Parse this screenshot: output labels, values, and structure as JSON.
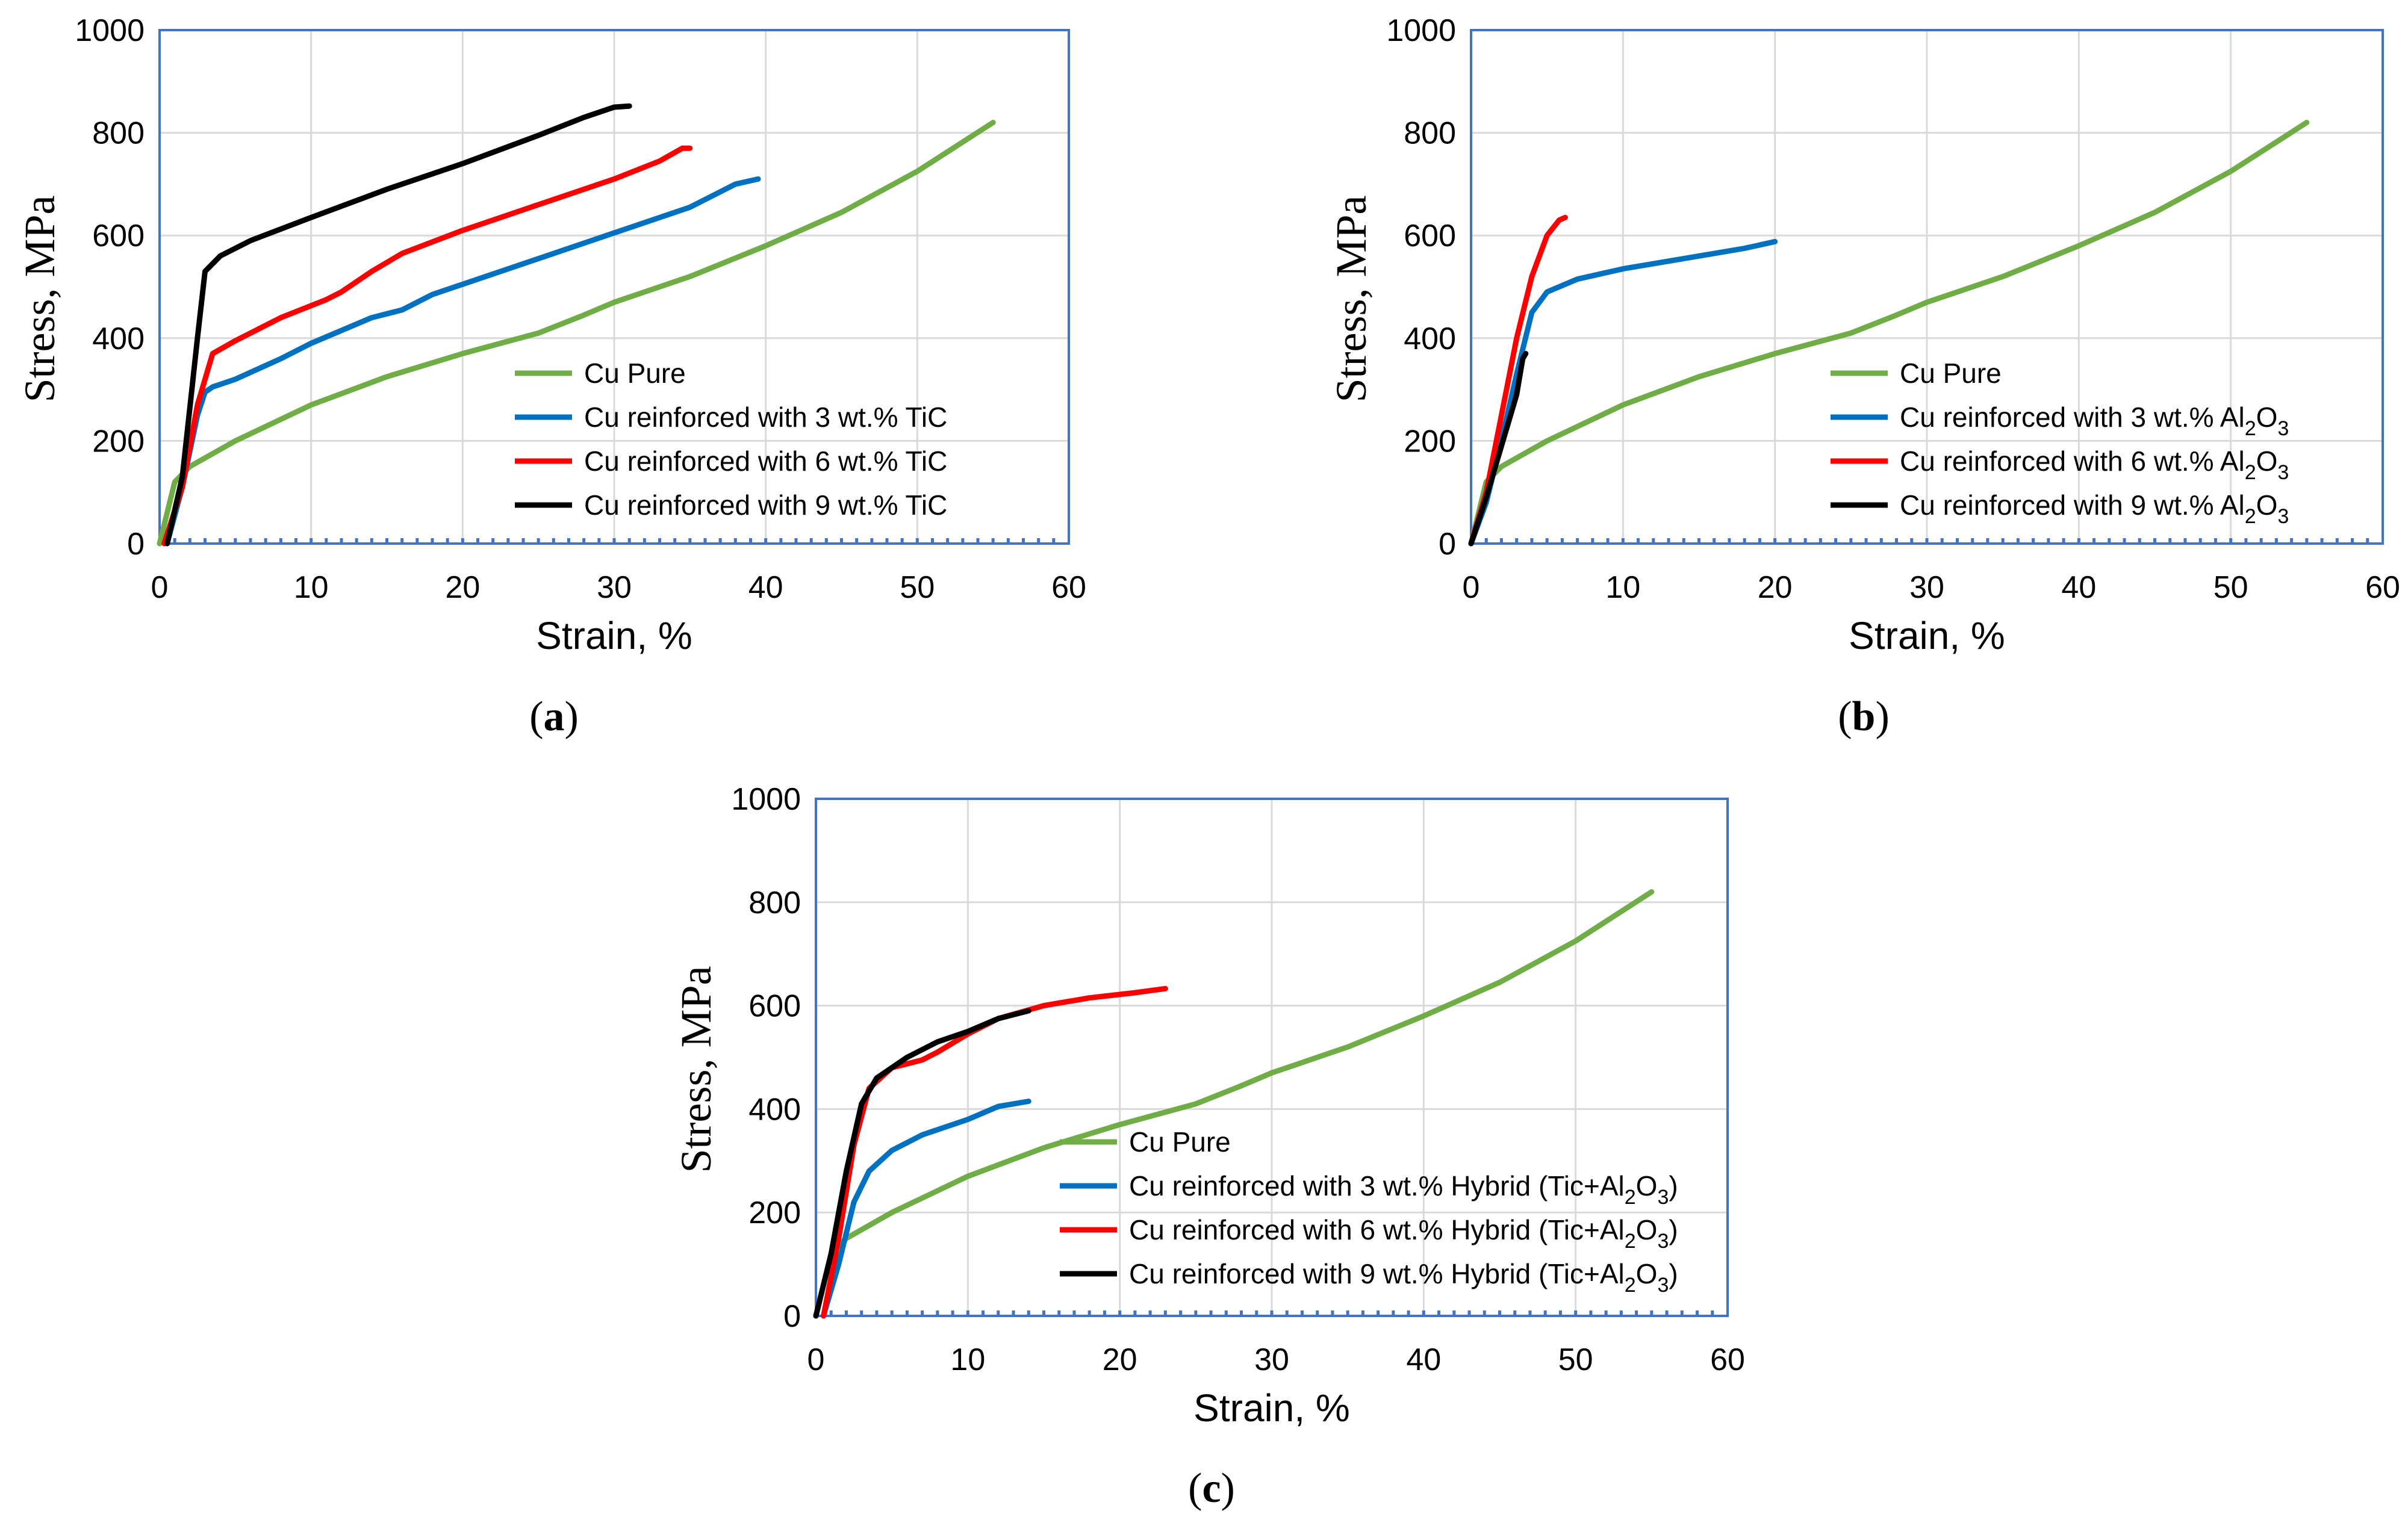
{
  "colors": {
    "pure": "#70ad47",
    "s3": "#0070c0",
    "s6": "#ff0000",
    "s9": "#000000",
    "frame": "#4472c4",
    "grid": "#d9d9d9"
  },
  "chart_data": [
    {
      "type": "line",
      "panel_label": "a",
      "xlabel": "Strain, %",
      "ylabel": "Stress,  MPa",
      "xlim": [
        0,
        60
      ],
      "ylim": [
        0,
        1000
      ],
      "xticks": [
        "0",
        "10",
        "20",
        "30",
        "40",
        "50",
        "60"
      ],
      "yticks": [
        "0",
        "200",
        "400",
        "600",
        "800",
        "1000"
      ],
      "legend_position": "bottom-right",
      "series": [
        {
          "name": "Cu Pure",
          "legend": {
            "pre": "Cu Pure",
            "sub1": "",
            "mid": "",
            "sub2": "",
            "post": ""
          },
          "color": "#70ad47",
          "points": [
            [
              0,
              0
            ],
            [
              1,
              120
            ],
            [
              2,
              150
            ],
            [
              5,
              200
            ],
            [
              10,
              270
            ],
            [
              15,
              325
            ],
            [
              20,
              370
            ],
            [
              25,
              410
            ],
            [
              28,
              445
            ],
            [
              30,
              470
            ],
            [
              35,
              520
            ],
            [
              40,
              580
            ],
            [
              45,
              645
            ],
            [
              50,
              725
            ],
            [
              55,
              820
            ]
          ]
        },
        {
          "name": "Cu reinforced with 3 wt.% TiC",
          "legend": {
            "pre": "Cu reinforced with 3 wt.% TiC",
            "sub1": "",
            "mid": "",
            "sub2": "",
            "post": ""
          },
          "color": "#0070c0",
          "points": [
            [
              0.5,
              0
            ],
            [
              1.5,
              110
            ],
            [
              2.5,
              250
            ],
            [
              3,
              295
            ],
            [
              3.5,
              305
            ],
            [
              5,
              320
            ],
            [
              8,
              360
            ],
            [
              10,
              390
            ],
            [
              14,
              440
            ],
            [
              16,
              455
            ],
            [
              18,
              485
            ],
            [
              20,
              505
            ],
            [
              25,
              555
            ],
            [
              30,
              605
            ],
            [
              35,
              655
            ],
            [
              38,
              700
            ],
            [
              39.5,
              710
            ]
          ]
        },
        {
          "name": "Cu reinforced with 6 wt.% TiC",
          "legend": {
            "pre": "Cu reinforced with 6 wt.% TiC",
            "sub1": "",
            "mid": "",
            "sub2": "",
            "post": ""
          },
          "color": "#ff0000",
          "points": [
            [
              0.3,
              0
            ],
            [
              1.5,
              110
            ],
            [
              2.5,
              270
            ],
            [
              3.5,
              370
            ],
            [
              5,
              395
            ],
            [
              8,
              440
            ],
            [
              11,
              475
            ],
            [
              12,
              490
            ],
            [
              14,
              530
            ],
            [
              16,
              565
            ],
            [
              20,
              610
            ],
            [
              25,
              660
            ],
            [
              30,
              710
            ],
            [
              33,
              745
            ],
            [
              34.5,
              770
            ],
            [
              35,
              770
            ]
          ]
        },
        {
          "name": "Cu reinforced with 9 wt.% TiC",
          "legend": {
            "pre": "Cu reinforced with 9 wt.% TiC",
            "sub1": "",
            "mid": "",
            "sub2": "",
            "post": ""
          },
          "color": "#000000",
          "points": [
            [
              0.5,
              0
            ],
            [
              1.5,
              130
            ],
            [
              2.5,
              400
            ],
            [
              3,
              530
            ],
            [
              4,
              560
            ],
            [
              6,
              590
            ],
            [
              10,
              635
            ],
            [
              15,
              690
            ],
            [
              20,
              740
            ],
            [
              25,
              795
            ],
            [
              28,
              830
            ],
            [
              30,
              850
            ],
            [
              31,
              852
            ]
          ]
        }
      ]
    },
    {
      "type": "line",
      "panel_label": "b",
      "xlabel": "Strain, %",
      "ylabel": "Stress,  MPa",
      "xlim": [
        0,
        60
      ],
      "ylim": [
        0,
        1000
      ],
      "xticks": [
        "0",
        "10",
        "20",
        "30",
        "40",
        "50",
        "60"
      ],
      "yticks": [
        "0",
        "200",
        "400",
        "600",
        "800",
        "1000"
      ],
      "legend_position": "bottom-right",
      "series": [
        {
          "name": "Cu Pure",
          "legend": {
            "pre": "Cu Pure",
            "sub1": "",
            "mid": "",
            "sub2": "",
            "post": ""
          },
          "color": "#70ad47",
          "points": [
            [
              0,
              0
            ],
            [
              1,
              120
            ],
            [
              2,
              150
            ],
            [
              5,
              200
            ],
            [
              10,
              270
            ],
            [
              15,
              325
            ],
            [
              20,
              370
            ],
            [
              25,
              410
            ],
            [
              28,
              445
            ],
            [
              30,
              470
            ],
            [
              35,
              520
            ],
            [
              40,
              580
            ],
            [
              45,
              645
            ],
            [
              50,
              725
            ],
            [
              55,
              820
            ]
          ]
        },
        {
          "name": "Cu reinforced with 3 wt.% Al2O3",
          "legend": {
            "pre": "Cu reinforced with 3 wt.% Al",
            "sub1": "2",
            "mid": "O",
            "sub2": "3",
            "post": ""
          },
          "color": "#0070c0",
          "points": [
            [
              0,
              0
            ],
            [
              1,
              80
            ],
            [
              2,
              200
            ],
            [
              3,
              330
            ],
            [
              4,
              450
            ],
            [
              5,
              490
            ],
            [
              7,
              515
            ],
            [
              10,
              535
            ],
            [
              13,
              550
            ],
            [
              16,
              565
            ],
            [
              18,
              575
            ],
            [
              20,
              588
            ]
          ]
        },
        {
          "name": "Cu reinforced with 6 wt.% Al2O3",
          "legend": {
            "pre": "Cu reinforced with 6 wt.% Al",
            "sub1": "2",
            "mid": "O",
            "sub2": "3",
            "post": ""
          },
          "color": "#ff0000",
          "points": [
            [
              0,
              0
            ],
            [
              1,
              100
            ],
            [
              2,
              250
            ],
            [
              3,
              400
            ],
            [
              4,
              520
            ],
            [
              5,
              600
            ],
            [
              5.8,
              630
            ],
            [
              6.2,
              635
            ]
          ]
        },
        {
          "name": "Cu reinforced with 9 wt.% Al2O3",
          "legend": {
            "pre": "Cu reinforced with 9 wt.% Al",
            "sub1": "2",
            "mid": "O",
            "sub2": "3",
            "post": ""
          },
          "color": "#000000",
          "points": [
            [
              0,
              0
            ],
            [
              1,
              90
            ],
            [
              2,
              190
            ],
            [
              3,
              290
            ],
            [
              3.4,
              360
            ],
            [
              3.6,
              370
            ]
          ]
        }
      ]
    },
    {
      "type": "line",
      "panel_label": "c",
      "xlabel": "Strain, %",
      "ylabel": "Stress,  MPa",
      "xlim": [
        0,
        60
      ],
      "ylim": [
        0,
        1000
      ],
      "xticks": [
        "0",
        "10",
        "20",
        "30",
        "40",
        "50",
        "60"
      ],
      "yticks": [
        "0",
        "200",
        "400",
        "600",
        "800",
        "1000"
      ],
      "legend_position": "bottom-right",
      "series": [
        {
          "name": "Cu Pure",
          "legend": {
            "pre": "Cu Pure",
            "sub1": "",
            "mid": "",
            "sub2": "",
            "post": ""
          },
          "color": "#70ad47",
          "points": [
            [
              0,
              0
            ],
            [
              1,
              120
            ],
            [
              2,
              150
            ],
            [
              5,
              200
            ],
            [
              10,
              270
            ],
            [
              15,
              325
            ],
            [
              20,
              370
            ],
            [
              25,
              410
            ],
            [
              28,
              445
            ],
            [
              30,
              470
            ],
            [
              35,
              520
            ],
            [
              40,
              580
            ],
            [
              45,
              645
            ],
            [
              50,
              725
            ],
            [
              55,
              820
            ]
          ]
        },
        {
          "name": "Cu reinforced with 3 wt.%  Hybrid (Tic+Al2O3)",
          "legend": {
            "pre": "Cu reinforced with 3 wt.%  Hybrid (Tic+Al",
            "sub1": "2",
            "mid": "O",
            "sub2": "3",
            "post": ")"
          },
          "color": "#0070c0",
          "points": [
            [
              0.5,
              0
            ],
            [
              1.5,
              100
            ],
            [
              2.5,
              220
            ],
            [
              3.5,
              280
            ],
            [
              5,
              320
            ],
            [
              7,
              350
            ],
            [
              10,
              380
            ],
            [
              12,
              405
            ],
            [
              14,
              415
            ]
          ]
        },
        {
          "name": "Cu reinforced with 6 wt.%  Hybrid (Tic+Al2O3)",
          "legend": {
            "pre": "Cu reinforced with 6 wt.%  Hybrid (Tic+Al",
            "sub1": "2",
            "mid": "O",
            "sub2": "3",
            "post": ")"
          },
          "color": "#ff0000",
          "points": [
            [
              0.5,
              0
            ],
            [
              1.5,
              150
            ],
            [
              2.5,
              330
            ],
            [
              3.5,
              440
            ],
            [
              5,
              480
            ],
            [
              7,
              495
            ],
            [
              8,
              510
            ],
            [
              10,
              545
            ],
            [
              12,
              575
            ],
            [
              15,
              600
            ],
            [
              18,
              615
            ],
            [
              21,
              625
            ],
            [
              23,
              633
            ]
          ]
        },
        {
          "name": "Cu reinforced with 9 wt.%  Hybrid (Tic+Al2O3)",
          "legend": {
            "pre": "Cu reinforced with 9 wt.%  Hybrid (Tic+Al",
            "sub1": "2",
            "mid": "O",
            "sub2": "3",
            "post": ")"
          },
          "color": "#000000",
          "points": [
            [
              0,
              0
            ],
            [
              1,
              120
            ],
            [
              2,
              280
            ],
            [
              3,
              410
            ],
            [
              4,
              460
            ],
            [
              6,
              500
            ],
            [
              8,
              530
            ],
            [
              10,
              550
            ],
            [
              12,
              575
            ],
            [
              14,
              590
            ]
          ]
        }
      ]
    }
  ]
}
